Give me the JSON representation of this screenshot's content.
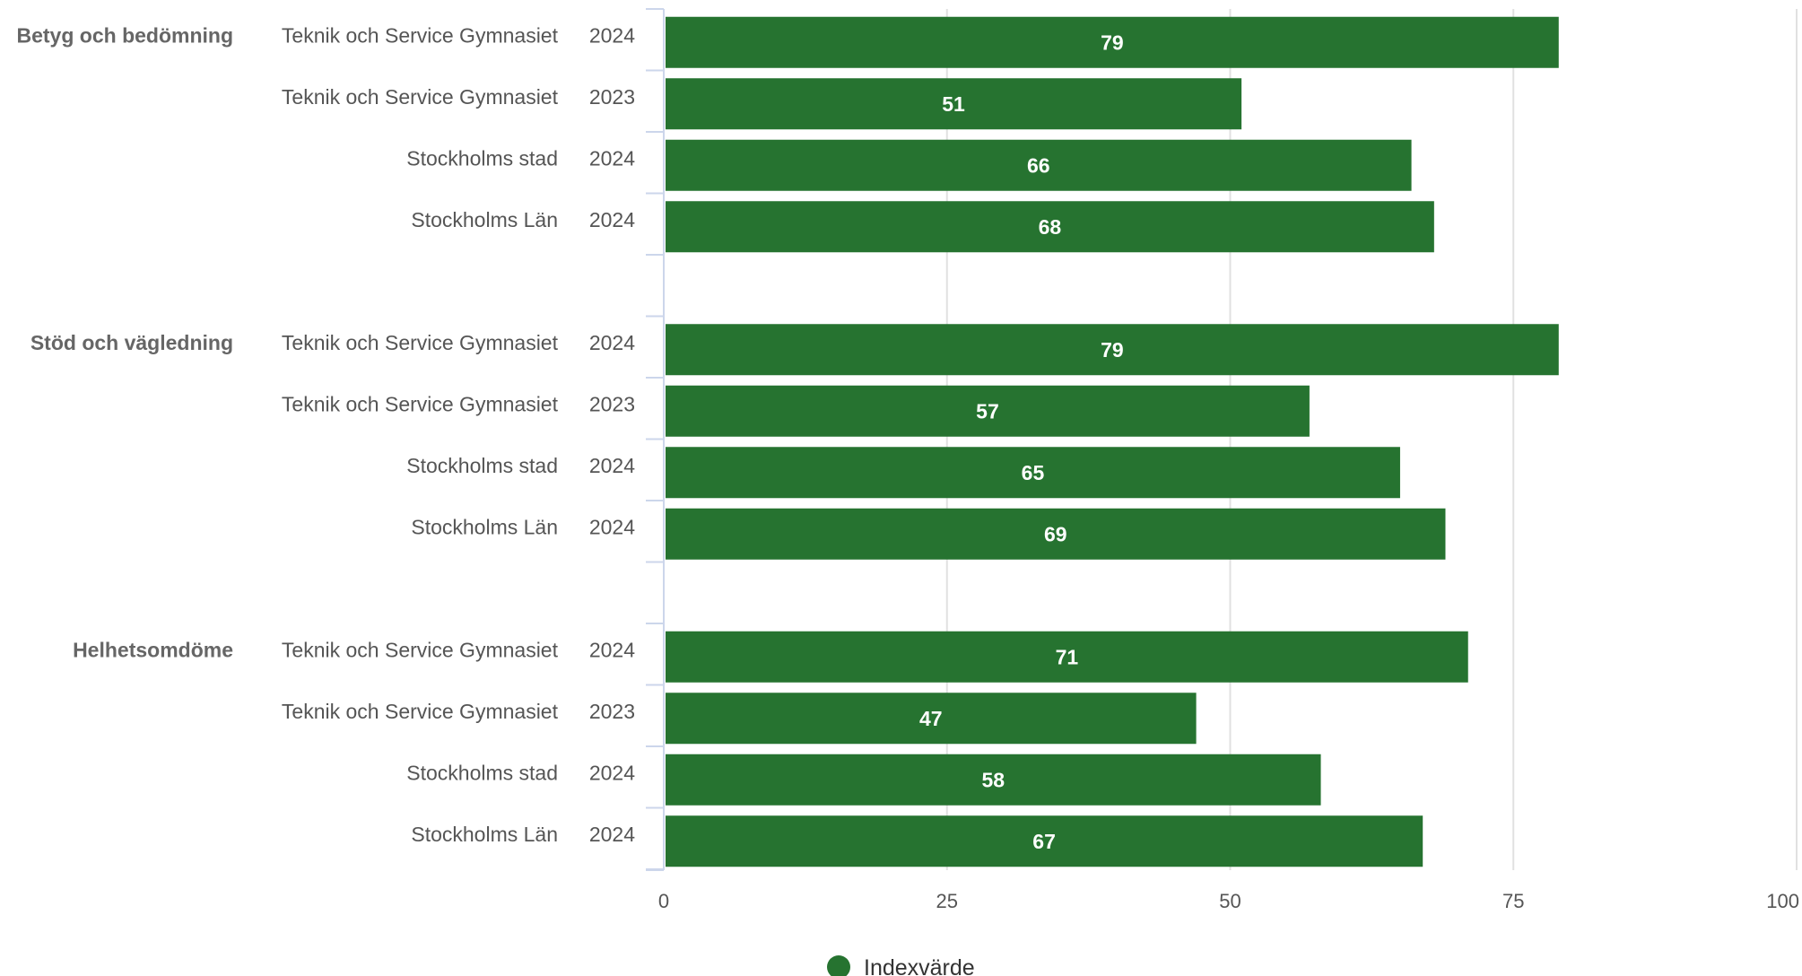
{
  "chart_data": {
    "type": "bar",
    "orientation": "horizontal",
    "groups": [
      {
        "name": "Betyg och bedömning",
        "rows": [
          {
            "label": "Teknik och Service Gymnasiet",
            "year": "2024",
            "value": 79
          },
          {
            "label": "Teknik och Service Gymnasiet",
            "year": "2023",
            "value": 51
          },
          {
            "label": "Stockholms stad",
            "year": "2024",
            "value": 66
          },
          {
            "label": "Stockholms Län",
            "year": "2024",
            "value": 68
          }
        ]
      },
      {
        "name": "Stöd och vägledning",
        "rows": [
          {
            "label": "Teknik och Service Gymnasiet",
            "year": "2024",
            "value": 79
          },
          {
            "label": "Teknik och Service Gymnasiet",
            "year": "2023",
            "value": 57
          },
          {
            "label": "Stockholms stad",
            "year": "2024",
            "value": 65
          },
          {
            "label": "Stockholms Län",
            "year": "2024",
            "value": 69
          }
        ]
      },
      {
        "name": "Helhetsomdöme",
        "rows": [
          {
            "label": "Teknik och Service Gymnasiet",
            "year": "2024",
            "value": 71
          },
          {
            "label": "Teknik och Service Gymnasiet",
            "year": "2023",
            "value": 47
          },
          {
            "label": "Stockholms stad",
            "year": "2024",
            "value": 58
          },
          {
            "label": "Stockholms Län",
            "year": "2024",
            "value": 67
          }
        ]
      }
    ],
    "series": [
      {
        "name": "Indexvärde",
        "color": "#267330"
      }
    ],
    "xlim": [
      0,
      100
    ],
    "xticks": [
      0,
      25,
      50,
      75,
      100
    ],
    "grid": true,
    "legend": "bottom-center"
  }
}
